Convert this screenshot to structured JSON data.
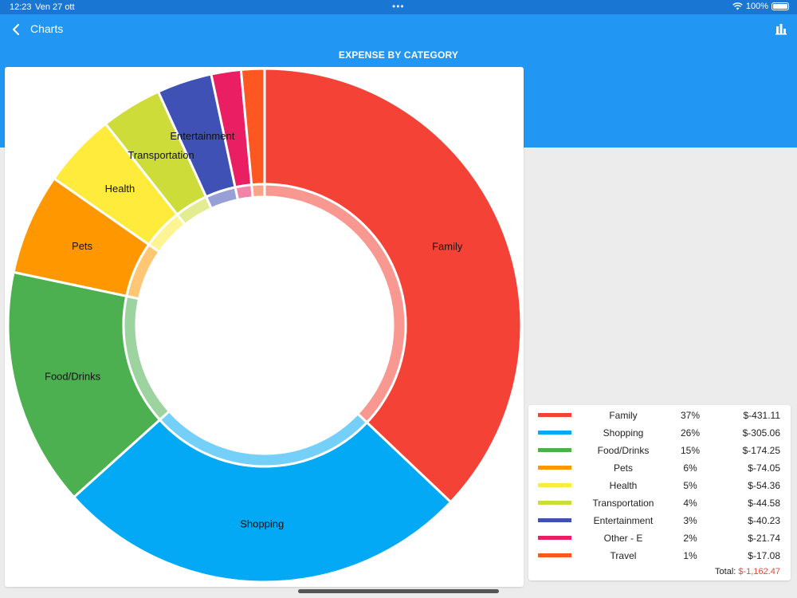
{
  "status": {
    "time": "12:23",
    "date": "Ven 27 ott",
    "dots": "•••",
    "battery": "100%"
  },
  "header": {
    "title": "Charts",
    "back_icon": "chevron-left-icon",
    "chart_icon": "bar-chart-icon"
  },
  "colors": {
    "header_bg": "#2196f3",
    "status_bg": "#1976d2",
    "total_red": "#f44336"
  },
  "chart_data": {
    "type": "pie",
    "title": "EXPENSE BY CATEGORY",
    "donut": true,
    "categories": [
      "Family",
      "Shopping",
      "Food/Drinks",
      "Pets",
      "Health",
      "Transportation",
      "Entertainment",
      "Other - E",
      "Travel"
    ],
    "values": [
      431.11,
      305.06,
      174.25,
      74.05,
      54.36,
      44.58,
      40.23,
      21.74,
      17.08
    ],
    "colors": [
      "#f44336",
      "#03a9f4",
      "#4caf50",
      "#ff9800",
      "#ffeb3b",
      "#cddc39",
      "#3f51b5",
      "#e91e63",
      "#ff5722"
    ],
    "slice_labels": [
      "Family",
      "Shopping",
      "Food/Drinks",
      "Pets",
      "Health",
      "Transportation",
      "Entertainment",
      "",
      ""
    ]
  },
  "legend": {
    "rows": [
      {
        "name": "Family",
        "percent": "37%",
        "amount": "$-431.11",
        "color": "#f44336"
      },
      {
        "name": "Shopping",
        "percent": "26%",
        "amount": "$-305.06",
        "color": "#03a9f4"
      },
      {
        "name": "Food/Drinks",
        "percent": "15%",
        "amount": "$-174.25",
        "color": "#4caf50"
      },
      {
        "name": "Pets",
        "percent": "6%",
        "amount": "$-74.05",
        "color": "#ff9800"
      },
      {
        "name": "Health",
        "percent": "5%",
        "amount": "$-54.36",
        "color": "#ffeb3b"
      },
      {
        "name": "Transportation",
        "percent": "4%",
        "amount": "$-44.58",
        "color": "#cddc39"
      },
      {
        "name": "Entertainment",
        "percent": "3%",
        "amount": "$-40.23",
        "color": "#3f51b5"
      },
      {
        "name": "Other - E",
        "percent": "2%",
        "amount": "$-21.74",
        "color": "#e91e63"
      },
      {
        "name": "Travel",
        "percent": "1%",
        "amount": "$-17.08",
        "color": "#ff5722"
      }
    ],
    "total_label": "Total:",
    "total_value": "$-1,162.47"
  }
}
